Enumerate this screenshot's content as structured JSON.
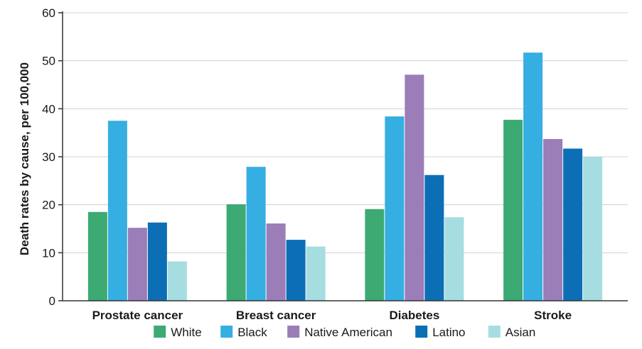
{
  "chart_data": {
    "type": "bar",
    "title": "",
    "xlabel": "",
    "ylabel": "Death rates by cause, per 100,000",
    "ylim": [
      0,
      60
    ],
    "yticks": [
      "0",
      "10",
      "20",
      "30",
      "40",
      "50",
      "60"
    ],
    "grid": true,
    "legend_position": "bottom",
    "categories": [
      "Prostate cancer",
      "Breast cancer",
      "Diabetes",
      "Stroke"
    ],
    "series": [
      {
        "name": "White",
        "color": "#3daa73",
        "values": [
          18.5,
          20.1,
          19.1,
          37.7
        ]
      },
      {
        "name": "Black",
        "color": "#35aee2",
        "values": [
          37.5,
          27.9,
          38.4,
          51.7
        ]
      },
      {
        "name": "Native American",
        "color": "#9b7db8",
        "values": [
          15.2,
          16.1,
          47.1,
          33.7
        ]
      },
      {
        "name": "Latino",
        "color": "#0c6fb6",
        "values": [
          16.3,
          12.7,
          26.2,
          31.7
        ]
      },
      {
        "name": "Asian",
        "color": "#a6dde0",
        "values": [
          8.2,
          11.3,
          17.4,
          30.0
        ]
      }
    ]
  }
}
